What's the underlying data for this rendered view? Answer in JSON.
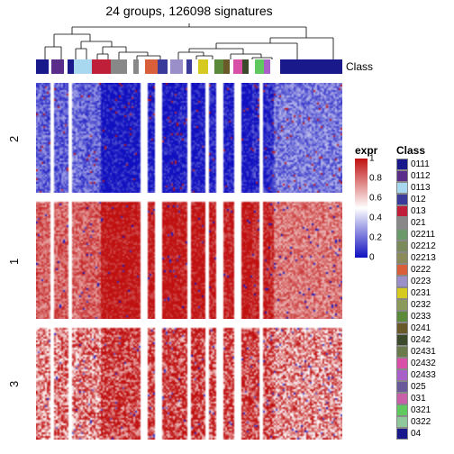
{
  "title": "24 groups, 126098 signatures",
  "classbar_label": "Class",
  "canvas_cols": 170,
  "canvas_rows": 198,
  "row_blocks": [
    {
      "label": "2",
      "start": 0,
      "end": 62,
      "base": 1.0,
      "spread": 0.28
    },
    {
      "label": "1",
      "start": 66,
      "end": 132,
      "base": 0.0,
      "spread": 0.28
    },
    {
      "label": "3",
      "start": 136,
      "end": 198,
      "base": 0.1,
      "spread": 0.55
    }
  ],
  "row_dividers": [
    62,
    132
  ],
  "col_bias_runs": [
    {
      "end": 8,
      "bias": 0.35
    },
    {
      "end": 10,
      "bias": -1
    },
    {
      "end": 18,
      "bias": 0.35
    },
    {
      "end": 20,
      "bias": -1
    },
    {
      "end": 24,
      "bias": 0.4
    },
    {
      "end": 36,
      "bias": 0.35
    },
    {
      "end": 48,
      "bias": 0.0
    },
    {
      "end": 58,
      "bias": 0.0
    },
    {
      "end": 62,
      "bias": -1
    },
    {
      "end": 66,
      "bias": 0.05
    },
    {
      "end": 70,
      "bias": -1
    },
    {
      "end": 78,
      "bias": 0.0
    },
    {
      "end": 84,
      "bias": 0.05
    },
    {
      "end": 86,
      "bias": -1
    },
    {
      "end": 94,
      "bias": 0.0
    },
    {
      "end": 96,
      "bias": -1
    },
    {
      "end": 100,
      "bias": 0.05
    },
    {
      "end": 104,
      "bias": -1
    },
    {
      "end": 110,
      "bias": 0.05
    },
    {
      "end": 114,
      "bias": -1
    },
    {
      "end": 120,
      "bias": 0.0
    },
    {
      "end": 124,
      "bias": 0.1
    },
    {
      "end": 126,
      "bias": -1
    },
    {
      "end": 132,
      "bias": 0.1
    },
    {
      "end": 170,
      "bias": 0.45
    }
  ],
  "column_groups": [
    {
      "width": 8,
      "color": "#19198c"
    },
    {
      "width": 2,
      "color": "#ffffff"
    },
    {
      "width": 8,
      "color": "#5a2d8a"
    },
    {
      "width": 2,
      "color": "#ffffff"
    },
    {
      "width": 4,
      "color": "#19198c"
    },
    {
      "width": 12,
      "color": "#a7d8f0"
    },
    {
      "width": 12,
      "color": "#c01f3a"
    },
    {
      "width": 10,
      "color": "#888888"
    },
    {
      "width": 4,
      "color": "#ffffff"
    },
    {
      "width": 4,
      "color": "#888888"
    },
    {
      "width": 4,
      "color": "#ffffff"
    },
    {
      "width": 8,
      "color": "#d95f3a"
    },
    {
      "width": 6,
      "color": "#3a3a9a"
    },
    {
      "width": 2,
      "color": "#ffffff"
    },
    {
      "width": 8,
      "color": "#9a8fc8"
    },
    {
      "width": 2,
      "color": "#ffffff"
    },
    {
      "width": 4,
      "color": "#3a3a9a"
    },
    {
      "width": 4,
      "color": "#ffffff"
    },
    {
      "width": 6,
      "color": "#d6c91f"
    },
    {
      "width": 4,
      "color": "#ffffff"
    },
    {
      "width": 6,
      "color": "#5a8a3a"
    },
    {
      "width": 4,
      "color": "#6a5a2a"
    },
    {
      "width": 2,
      "color": "#ffffff"
    },
    {
      "width": 6,
      "color": "#d94fa8"
    },
    {
      "width": 4,
      "color": "#3a4a2a"
    },
    {
      "width": 4,
      "color": "#ffffff"
    },
    {
      "width": 6,
      "color": "#5fc85f"
    },
    {
      "width": 4,
      "color": "#a85fc8"
    },
    {
      "width": 6,
      "color": "#ffffff"
    },
    {
      "width": 40,
      "color": "#19198c"
    }
  ],
  "expr_legend": {
    "title": "expr",
    "ticks": [
      {
        "value": "1",
        "pos": 0.0
      },
      {
        "value": "0.8",
        "pos": 0.2
      },
      {
        "value": "0.6",
        "pos": 0.4
      },
      {
        "value": "0.4",
        "pos": 0.6
      },
      {
        "value": "0.2",
        "pos": 0.8
      },
      {
        "value": "0",
        "pos": 1.0
      }
    ],
    "gradient": [
      "#c01010",
      "#ffffff",
      "#1010c0"
    ]
  },
  "class_legend": {
    "title": "Class",
    "items": [
      {
        "label": "0111",
        "color": "#19198c"
      },
      {
        "label": "0112",
        "color": "#5a2d8a"
      },
      {
        "label": "0113",
        "color": "#a7d8f0"
      },
      {
        "label": "012",
        "color": "#3a3a9a"
      },
      {
        "label": "013",
        "color": "#c01f3a"
      },
      {
        "label": "021",
        "color": "#888888"
      },
      {
        "label": "02211",
        "color": "#6a9a6a"
      },
      {
        "label": "02212",
        "color": "#7a8a5a"
      },
      {
        "label": "02213",
        "color": "#8a8a5a"
      },
      {
        "label": "0222",
        "color": "#d95f3a"
      },
      {
        "label": "0223",
        "color": "#9a8fc8"
      },
      {
        "label": "0231",
        "color": "#d6c91f"
      },
      {
        "label": "0232",
        "color": "#8a9a5a"
      },
      {
        "label": "0233",
        "color": "#5a8a3a"
      },
      {
        "label": "0241",
        "color": "#6a5a2a"
      },
      {
        "label": "0242",
        "color": "#3a4a2a"
      },
      {
        "label": "02431",
        "color": "#6a7a4a"
      },
      {
        "label": "02432",
        "color": "#d94fa8"
      },
      {
        "label": "02433",
        "color": "#a85fc8"
      },
      {
        "label": "025",
        "color": "#6a5a9a"
      },
      {
        "label": "031",
        "color": "#c85fa8"
      },
      {
        "label": "0321",
        "color": "#5fc85f"
      },
      {
        "label": "0322",
        "color": "#8fc89a"
      },
      {
        "label": "04",
        "color": "#19198c"
      }
    ]
  }
}
